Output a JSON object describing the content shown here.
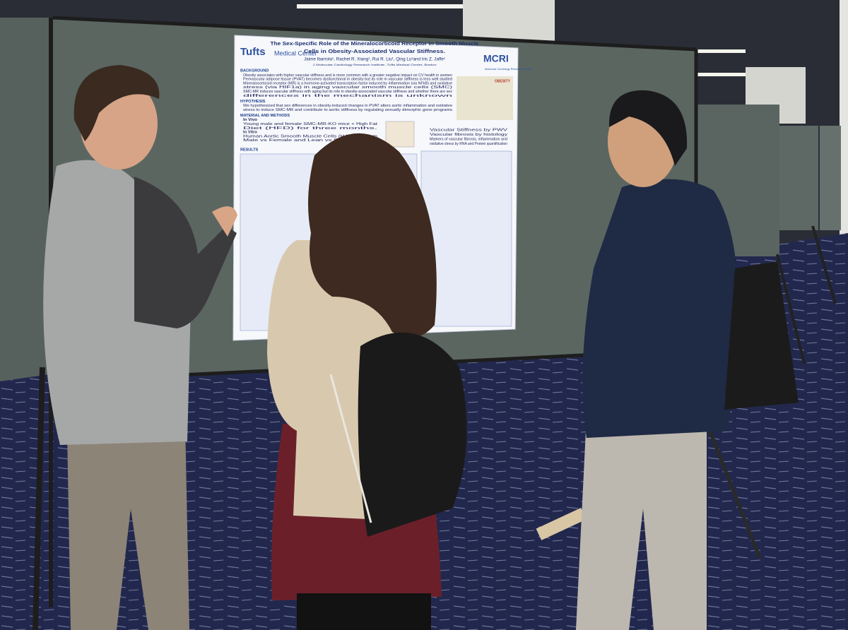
{
  "poster": {
    "logo_left": "Tufts",
    "logo_left_sub": "Medical Center",
    "logo_right": "MCRI",
    "logo_right_sub": "Molecular Cardiology Research Institute",
    "title_lines": [
      "The Sex-Specific Role of the Mineralocorticoid Receptor in Smooth Muscle",
      "Cells in Obesity-Associated Vascular Stiffness."
    ],
    "authors": "Jaime Ibarrola¹, Rachel R. Xiang¹, Rui R. Liu¹, Qing Lu¹and Iris Z. Jaffe¹",
    "affiliation": "1 Molecular Cardiology Research Institute, Tufts Medical Center, Boston",
    "obesity_label": "OBESITY",
    "sections": [
      {
        "heading": "BACKGROUND",
        "lines": [
          "Obesity associates with higher vascular stiffness and is more common with a greater negative impact on CV health in women",
          "Perivascular adipose tissue (PVAT) becomes dysfunctional in obesity but its role in vascular stiffness is less well studied",
          "Mineralocorticoid receptor (MR) is a hormone-activated transcription factor induced by inflammation (via NFkB) and oxidative",
          "stress (via HIF1a) in aging vascular smooth muscle cells (SMC)",
          "SMC-MR induces vascular stiffness with aging but its role in obesity-associated vascular stiffness and whether there are sex",
          "differences in the mechanism is unknown"
        ]
      },
      {
        "heading": "HYPOTHESIS",
        "lines": [
          "We hypothesized that sex differences in obesity-induced changes in PVAT alters aortic inflammation and oxidative",
          "stress to induce SMC-MR and contribute to aortic stiffness by regulating sexually dimorphic gene programs"
        ]
      },
      {
        "heading": "MATERIAL AND METHODS",
        "lines": [
          "In Vivo",
          "Young male and female SMC-MR-KO mice + High Fat",
          "Diet (HFD) for three months.",
          "In Vitro",
          "Human Aortic Smooth Muscle Cells (HASMC) from",
          "Male vs Female and Lean vs Obese donors"
        ]
      }
    ],
    "outcomes": [
      "Vascular Stiffness by PWV",
      "Vascular fibrosis by histology",
      "Markers of vascular fibrosis, inflammation and",
      "oxidative stress by RNA and Protein quantification"
    ],
    "results_heading": "RESULTS"
  }
}
